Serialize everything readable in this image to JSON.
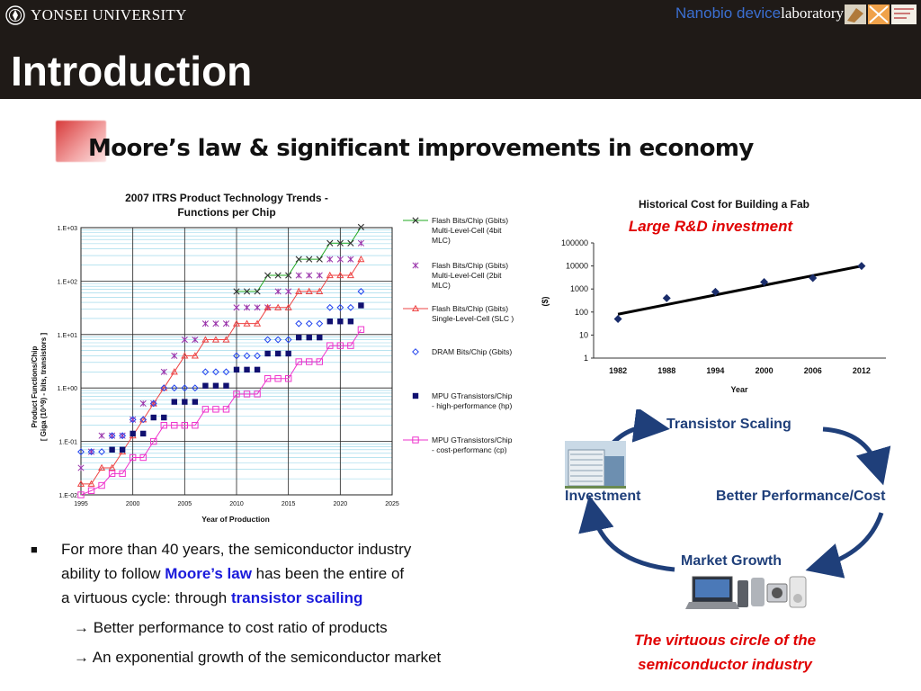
{
  "header": {
    "university": "YONSEI UNIVERSITY",
    "lab_part1": "Nanobio device",
    "lab_part2": "laboratory",
    "title": "Introduction"
  },
  "subtitle": "Moore’s law & significant improvements in economy",
  "colors": {
    "header_bg": "#1f1a17",
    "accent_red": "#e00000",
    "accent_blue": "#1a1adb"
  },
  "chart_data": [
    {
      "type": "scatter",
      "title": "2007 ITRS Product Technology Trends - Functions per Chip",
      "title_lines": [
        "2007 ITRS Product Technology Trends -",
        "Functions per Chip"
      ],
      "xlabel": "Year of Production",
      "ylabel_lines": [
        "Product Functions/Chip",
        "[ Giga (10^9) - bits, transistors ]"
      ],
      "xlim": [
        1995,
        2025
      ],
      "ylim": [
        0.01,
        1000
      ],
      "y_scale": "log",
      "x_ticks": [
        "1995",
        "2000",
        "2005",
        "2010",
        "2015",
        "2020",
        "2025"
      ],
      "y_ticks": [
        "1.E-02",
        "1.E-01",
        "1.E+00",
        "1.E+01",
        "1.E+02",
        "1.E+03"
      ],
      "grid": true,
      "legend_position": "right",
      "series": [
        {
          "name": "Flash Bits/Chip (Gbits) Multi-Level-Cell (4bit MLC)",
          "legend_lines": [
            "Flash Bits/Chip (Gbits)",
            "Multi-Level-Cell (4bit",
            "MLC)"
          ],
          "marker": "x",
          "color": "#22aa22",
          "x": [
            2010,
            2011,
            2012,
            2013,
            2014,
            2015,
            2016,
            2017,
            2018,
            2019,
            2020,
            2021,
            2022
          ],
          "y": [
            64,
            64,
            64,
            128,
            128,
            128,
            256,
            256,
            256,
            512,
            512,
            512,
            1024
          ]
        },
        {
          "name": "Flash Bits/Chip (Gbits) Multi-Level-Cell (2bit MLC)",
          "legend_lines": [
            "Flash Bits/Chip (Gbits)",
            "Multi-Level-Cell (2bit",
            "MLC)"
          ],
          "marker": "star",
          "color": "#9933aa",
          "x": [
            1995,
            1996,
            1997,
            1998,
            1999,
            2000,
            2001,
            2002,
            2003,
            2004,
            2005,
            2006,
            2007,
            2008,
            2009,
            2010,
            2011,
            2012,
            2013,
            2014,
            2015,
            2016,
            2017,
            2018,
            2019,
            2020,
            2021,
            2022
          ],
          "y": [
            0.032,
            0.064,
            0.128,
            0.128,
            0.128,
            0.256,
            0.512,
            0.512,
            2,
            4,
            8,
            8,
            16,
            16,
            16,
            32,
            32,
            32,
            32,
            64,
            64,
            128,
            128,
            128,
            256,
            256,
            256,
            512
          ]
        },
        {
          "name": "Flash Bits/Chip (Gbits) Single-Level-Cell (SLC)",
          "legend_lines": [
            "Flash Bits/Chip (Gbits)",
            "Single-Level-Cell (SLC )"
          ],
          "marker": "triangle",
          "color": "#ee4444",
          "x": [
            1995,
            1996,
            1997,
            1998,
            1999,
            2000,
            2001,
            2002,
            2003,
            2004,
            2005,
            2006,
            2007,
            2008,
            2009,
            2010,
            2011,
            2012,
            2013,
            2014,
            2015,
            2016,
            2017,
            2018,
            2019,
            2020,
            2021,
            2022
          ],
          "y": [
            0.016,
            0.016,
            0.032,
            0.032,
            0.064,
            0.128,
            0.256,
            0.512,
            1,
            2,
            4,
            4,
            8,
            8,
            8,
            16,
            16,
            16,
            32,
            32,
            32,
            64,
            64,
            64,
            128,
            128,
            128,
            256
          ]
        },
        {
          "name": "DRAM Bits/Chip (Gbits)",
          "legend_lines": [
            "DRAM Bits/Chip (Gbits)"
          ],
          "marker": "diamond",
          "color": "#2244ee",
          "x": [
            1995,
            1996,
            1997,
            1998,
            1999,
            2000,
            2001,
            2002,
            2003,
            2004,
            2005,
            2006,
            2007,
            2008,
            2009,
            2010,
            2011,
            2012,
            2013,
            2014,
            2015,
            2016,
            2017,
            2018,
            2019,
            2020,
            2021,
            2022
          ],
          "y": [
            0.064,
            0.064,
            0.064,
            0.128,
            0.128,
            0.256,
            0.256,
            0.512,
            1,
            1,
            1,
            1,
            2,
            2,
            2,
            4,
            4,
            4,
            8,
            8,
            8,
            16,
            16,
            16,
            32,
            32,
            32,
            64
          ]
        },
        {
          "name": "MPU GTransistors/Chip - high-performance (hp)",
          "legend_lines": [
            "MPU GTransistors/Chip",
            "- high-performance (hp)"
          ],
          "marker": "square",
          "color": "#101070",
          "x": [
            1998,
            1999,
            2000,
            2001,
            2002,
            2003,
            2004,
            2005,
            2006,
            2007,
            2008,
            2009,
            2010,
            2011,
            2012,
            2013,
            2014,
            2015,
            2016,
            2017,
            2018,
            2019,
            2020,
            2021,
            2022
          ],
          "y": [
            0.07,
            0.07,
            0.14,
            0.14,
            0.28,
            0.28,
            0.55,
            0.55,
            0.55,
            1.1,
            1.1,
            1.1,
            2.2,
            2.2,
            2.2,
            4.4,
            4.4,
            4.4,
            8.8,
            8.8,
            8.8,
            17.6,
            17.6,
            17.6,
            35
          ]
        },
        {
          "name": "MPU GTransistors/Chip - cost-performanc (cp)",
          "legend_lines": [
            "MPU GTransistors/Chip",
            "- cost-performanc (cp)"
          ],
          "marker": "square-open",
          "color": "#ee33cc",
          "x": [
            1995,
            1996,
            1997,
            1998,
            1999,
            2000,
            2001,
            2002,
            2003,
            2004,
            2005,
            2006,
            2007,
            2008,
            2009,
            2010,
            2011,
            2012,
            2013,
            2014,
            2015,
            2016,
            2017,
            2018,
            2019,
            2020,
            2021,
            2022
          ],
          "y": [
            0.01,
            0.012,
            0.015,
            0.025,
            0.025,
            0.05,
            0.05,
            0.1,
            0.2,
            0.2,
            0.2,
            0.2,
            0.4,
            0.4,
            0.4,
            0.77,
            0.77,
            0.77,
            1.5,
            1.5,
            1.5,
            3.1,
            3.1,
            3.1,
            6.2,
            6.2,
            6.2,
            12.4
          ]
        }
      ]
    },
    {
      "type": "scatter",
      "title": "Historical Cost for Building a Fab",
      "annotation": "Large R&D investment",
      "xlabel": "Year",
      "ylabel": "($)",
      "y_scale": "log",
      "ylim": [
        1,
        100000
      ],
      "categories": [
        "1982",
        "1988",
        "1994",
        "2000",
        "2006",
        "2012"
      ],
      "y_ticks": [
        "1",
        "10",
        "100",
        "1000",
        "10000",
        "100000"
      ],
      "values": [
        50,
        400,
        750,
        2000,
        3000,
        10000
      ],
      "trendline": {
        "from": 80,
        "to": 10000
      },
      "grid": false
    }
  ],
  "cycle": {
    "transistor_scaling": "Transistor Scaling",
    "investment": "Investment",
    "better_performance": "Better Performance/Cost",
    "market_growth": "Market Growth",
    "caption_line1": "The virtuous circle of the",
    "caption_line2": "semiconductor industry"
  },
  "bullets": {
    "main_line1": "For more than 40 years, the semiconductor industry",
    "main_line2a": "ability to follow ",
    "main_line2b": "Moore’s law",
    "main_line2c": " has been the entire of",
    "main_line3a": "a virtuous cycle: through ",
    "main_line3b": "transistor scailing",
    "sub1": "Better performance to cost ratio of products",
    "sub2": "An exponential growth of the semiconductor market"
  }
}
